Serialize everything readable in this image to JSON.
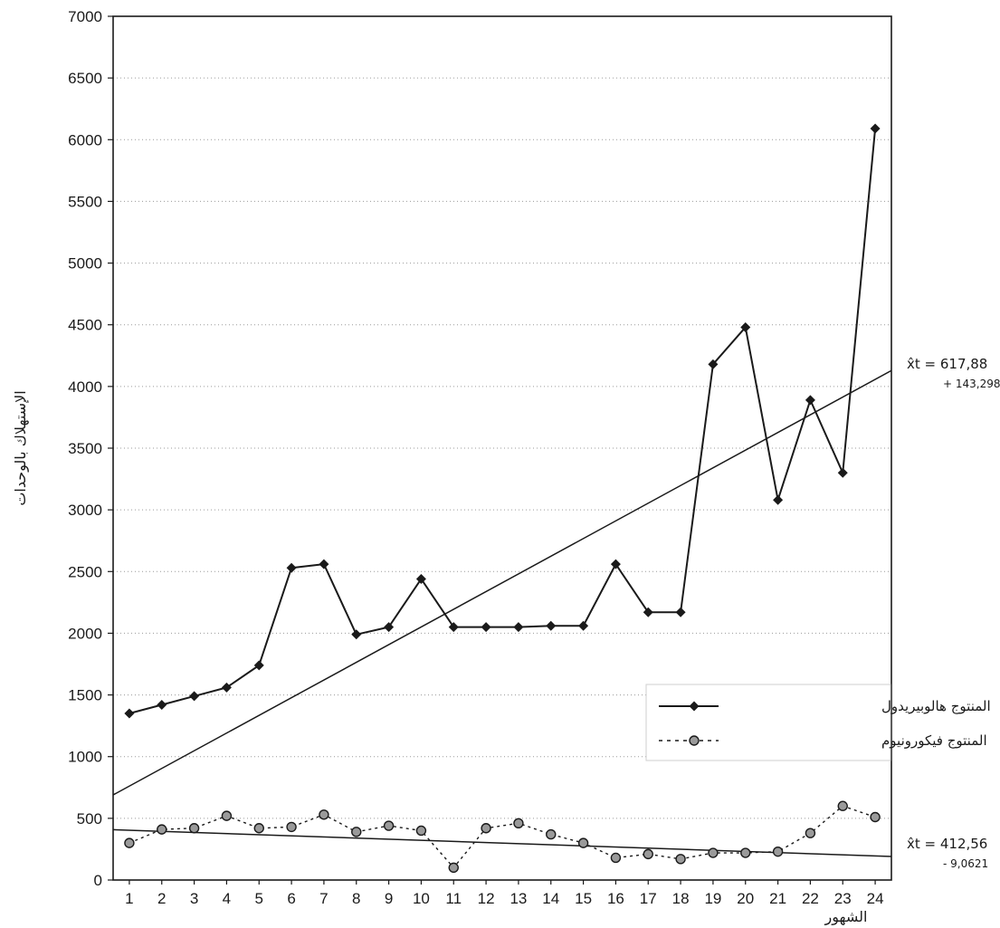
{
  "chart_data": {
    "type": "line",
    "title": "",
    "xlabel": "الشهور",
    "ylabel": "الإستهلاك بالوحدات",
    "x": [
      1,
      2,
      3,
      4,
      5,
      6,
      7,
      8,
      9,
      10,
      11,
      12,
      13,
      14,
      15,
      16,
      17,
      18,
      19,
      20,
      21,
      22,
      23,
      24
    ],
    "x_tick_labels": [
      "1",
      "2",
      "3",
      "4",
      "5",
      "6",
      "7",
      "8",
      "9",
      "10",
      "11",
      "12",
      "13",
      "14",
      "15",
      "16",
      "17",
      "18",
      "19",
      "20",
      "21",
      "22",
      "23",
      "24"
    ],
    "ylim": [
      0,
      7000
    ],
    "y_ticks": [
      0,
      500,
      1000,
      1500,
      2000,
      2500,
      3000,
      3500,
      4000,
      4500,
      5000,
      5500,
      6000,
      6500,
      7000
    ],
    "y_tick_labels": [
      "0",
      "500",
      "1000",
      "1500",
      "2000",
      "2500",
      "3000",
      "3500",
      "4000",
      "4500",
      "5000",
      "5500",
      "6000",
      "6500",
      "7000"
    ],
    "grid": "horizontal dotted",
    "legend_position": "right",
    "series": [
      {
        "name": "المنتوج هالوبيريدول",
        "style": "solid",
        "marker": "diamond",
        "color": "#1a1a1a",
        "values": [
          1350,
          1420,
          1490,
          1560,
          1740,
          2530,
          2560,
          1990,
          2050,
          2440,
          2050,
          2050,
          2050,
          2060,
          2060,
          2560,
          2170,
          2170,
          4180,
          4480,
          3080,
          3890,
          3300,
          6090
        ]
      },
      {
        "name": "المنتوج فيكورونيوم",
        "style": "dashed",
        "marker": "circle",
        "color": "#1a1a1a",
        "values": [
          300,
          410,
          420,
          520,
          420,
          430,
          530,
          390,
          440,
          400,
          100,
          420,
          460,
          370,
          300,
          180,
          210,
          170,
          220,
          220,
          230,
          380,
          600,
          510
        ]
      }
    ],
    "trendlines": [
      {
        "series": "المنتوج هالوبيريدول",
        "intercept": 617.88,
        "slope": 143.298,
        "label_line1": "x̂t = 617,88",
        "label_line2": "+ 143,298"
      },
      {
        "series": "المنتوج فيكورونيوم",
        "intercept": 412.56,
        "slope": -9.0621,
        "label_line1": "x̂t = 412,56",
        "label_line2": "- 9,0621"
      }
    ]
  }
}
